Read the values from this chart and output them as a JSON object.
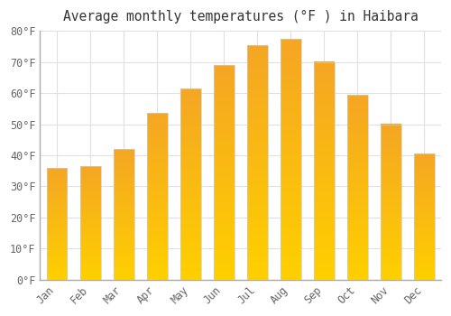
{
  "title": "Average monthly temperatures (°F ) in Haibara",
  "months": [
    "Jan",
    "Feb",
    "Mar",
    "Apr",
    "May",
    "Jun",
    "Jul",
    "Aug",
    "Sep",
    "Oct",
    "Nov",
    "Dec"
  ],
  "values": [
    36,
    36.5,
    42,
    53.5,
    61.5,
    69,
    75.5,
    77.5,
    70,
    59.5,
    50,
    40.5
  ],
  "bar_color_top": "#F5A623",
  "bar_color_bottom": "#FFD000",
  "background_color": "#ffffff",
  "plot_bg_color": "#ffffff",
  "ylim": [
    0,
    80
  ],
  "ytick_step": 10,
  "grid_color": "#e0e0e0",
  "title_fontsize": 10.5,
  "tick_fontsize": 8.5,
  "ylabel_suffix": "°F"
}
